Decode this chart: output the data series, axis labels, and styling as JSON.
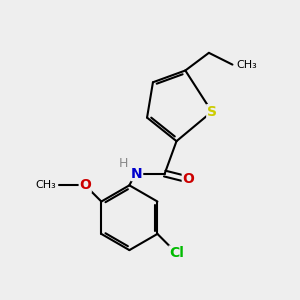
{
  "bg_color": "#eeeeee",
  "atom_colors": {
    "S": "#cccc00",
    "N": "#0000cc",
    "O": "#cc0000",
    "Cl": "#00bb00",
    "C": "#000000",
    "H": "#888888"
  },
  "bond_color": "#000000",
  "bond_width": 1.5,
  "font_size_atom": 10,
  "font_size_small": 9
}
